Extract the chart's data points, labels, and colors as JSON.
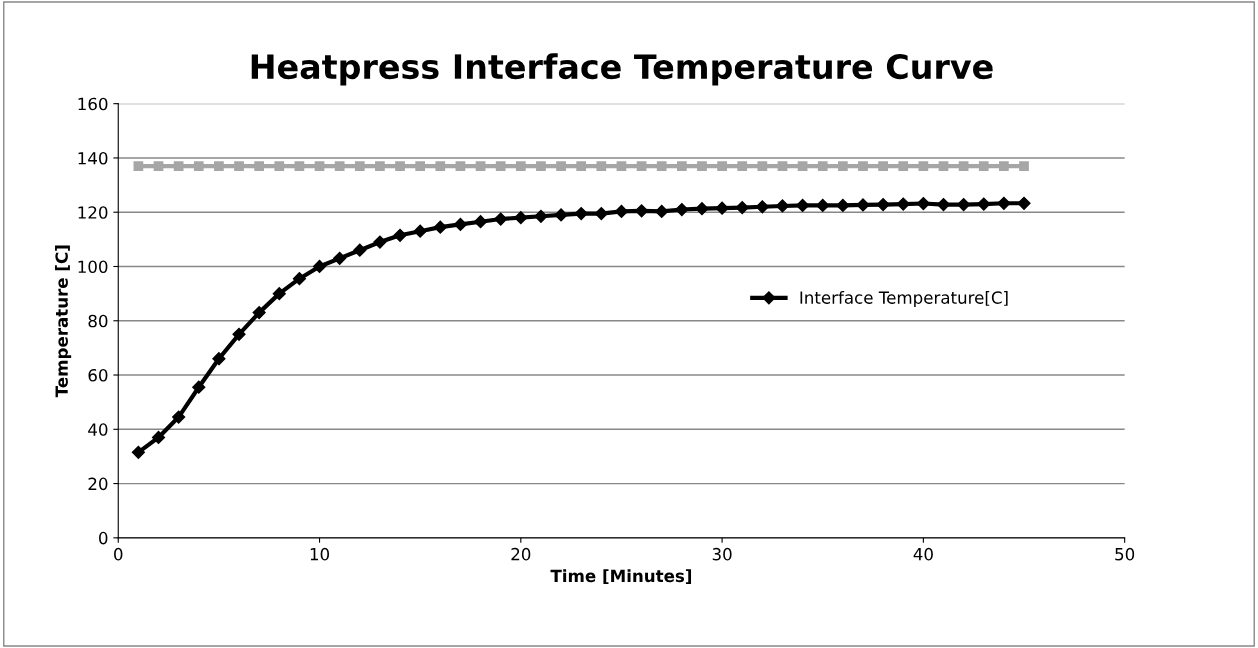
{
  "chart_data": {
    "type": "line",
    "title": "Heatpress Interface Temperature Curve",
    "xlabel": "Time [Minutes]",
    "ylabel": "Temperature [C]",
    "x": [
      1,
      2,
      3,
      4,
      5,
      6,
      7,
      8,
      9,
      10,
      11,
      12,
      13,
      14,
      15,
      16,
      17,
      18,
      19,
      20,
      21,
      22,
      23,
      24,
      25,
      26,
      27,
      28,
      29,
      30,
      31,
      32,
      33,
      34,
      35,
      36,
      37,
      38,
      39,
      40,
      41,
      42,
      43,
      44,
      45
    ],
    "series": [
      {
        "color": "#a6a6a6",
        "marker": "square",
        "values": [
          137,
          137,
          137,
          137,
          137,
          137,
          137,
          137,
          137,
          137,
          137,
          137,
          137,
          137,
          137,
          137,
          137,
          137,
          137,
          137,
          137,
          137,
          137,
          137,
          137,
          137,
          137,
          137,
          137,
          137,
          137,
          137,
          137,
          137,
          137,
          137,
          137,
          137,
          137,
          137,
          137,
          137,
          137,
          137,
          137
        ]
      },
      {
        "name": "Interface Temperature[C]",
        "color": "#000000",
        "marker": "diamond",
        "values": [
          31.5,
          37,
          44.5,
          55.5,
          66,
          75,
          83,
          90,
          95.5,
          100,
          103,
          106,
          109,
          111.5,
          113,
          114.5,
          115.5,
          116.5,
          117.5,
          118,
          118.5,
          119,
          119.5,
          119.5,
          120.3,
          120.5,
          120.3,
          121,
          121.3,
          121.5,
          121.7,
          122,
          122.3,
          122.5,
          122.5,
          122.5,
          122.7,
          122.8,
          123,
          123.2,
          122.8,
          122.8,
          123,
          123.3,
          123.3
        ]
      }
    ],
    "xlim": [
      0,
      50
    ],
    "xticks": [
      0,
      10,
      20,
      30,
      40,
      50
    ],
    "ylim": [
      0,
      160
    ],
    "yticks": [
      0,
      20,
      40,
      60,
      80,
      100,
      120,
      140,
      160
    ],
    "grid": "y",
    "legend": "right",
    "line_style": "solid"
  }
}
